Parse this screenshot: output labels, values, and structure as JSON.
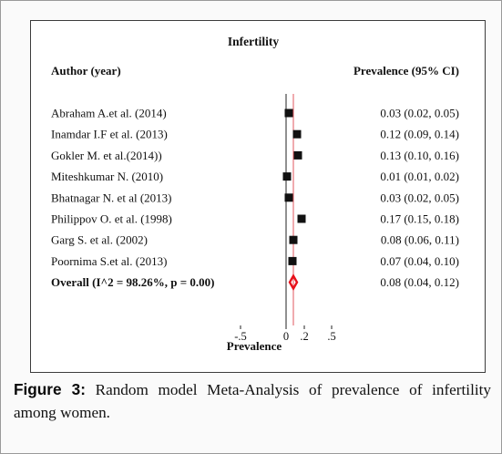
{
  "chart_data": {
    "type": "forest",
    "title": "Infertility",
    "col_study_header": "Author (year)",
    "col_est_header": "Prevalence (95% CI)",
    "xlabel": "Prevalence",
    "x_ticks": [
      {
        "v": -0.5,
        "label": "-.5"
      },
      {
        "v": 0,
        "label": "0"
      },
      {
        "v": 0.2,
        "label": ".2"
      },
      {
        "v": 0.5,
        "label": ".5"
      }
    ],
    "xlim": [
      -0.9,
      0.9
    ],
    "reference_line": 0,
    "overall_line": 0.08,
    "studies": [
      {
        "label": "Abraham A.et al. (2014)",
        "est": 0.03,
        "lo": 0.02,
        "hi": 0.05,
        "text": "0.03 (0.02, 0.05)"
      },
      {
        "label": "Inamdar I.F et al. (2013)",
        "est": 0.12,
        "lo": 0.09,
        "hi": 0.14,
        "text": "0.12 (0.09, 0.14)"
      },
      {
        "label": "Gokler M. et al.(2014))",
        "est": 0.13,
        "lo": 0.1,
        "hi": 0.16,
        "text": "0.13 (0.10, 0.16)"
      },
      {
        "label": "Miteshkumar N. (2010)",
        "est": 0.01,
        "lo": 0.01,
        "hi": 0.02,
        "text": "0.01 (0.01, 0.02)"
      },
      {
        "label": "Bhatnagar N. et al (2013)",
        "est": 0.03,
        "lo": 0.02,
        "hi": 0.05,
        "text": "0.03 (0.02, 0.05)"
      },
      {
        "label": "Philippov O. et al. (1998)",
        "est": 0.17,
        "lo": 0.15,
        "hi": 0.18,
        "text": "0.17 (0.15, 0.18)"
      },
      {
        "label": "Garg S. et al.  (2002)",
        "est": 0.08,
        "lo": 0.06,
        "hi": 0.11,
        "text": "0.08 (0.06, 0.11)"
      },
      {
        "label": "Poornima S.et al. (2013)",
        "est": 0.07,
        "lo": 0.04,
        "hi": 0.1,
        "text": "0.07 (0.04, 0.10)"
      }
    ],
    "overall": {
      "label": "Overall (I^2 = 98.26%, p = 0.00)",
      "est": 0.08,
      "lo": 0.04,
      "hi": 0.12,
      "text": "0.08 (0.04, 0.12)"
    },
    "colors": {
      "marker": "#111111",
      "diamond": "#e8101a",
      "overall_line": "#e0575f",
      "frame": "#3c3c3c"
    }
  },
  "caption": {
    "label": "Figure 3:",
    "text": " Random model Meta-Analysis of prevalence of infertility among women."
  }
}
